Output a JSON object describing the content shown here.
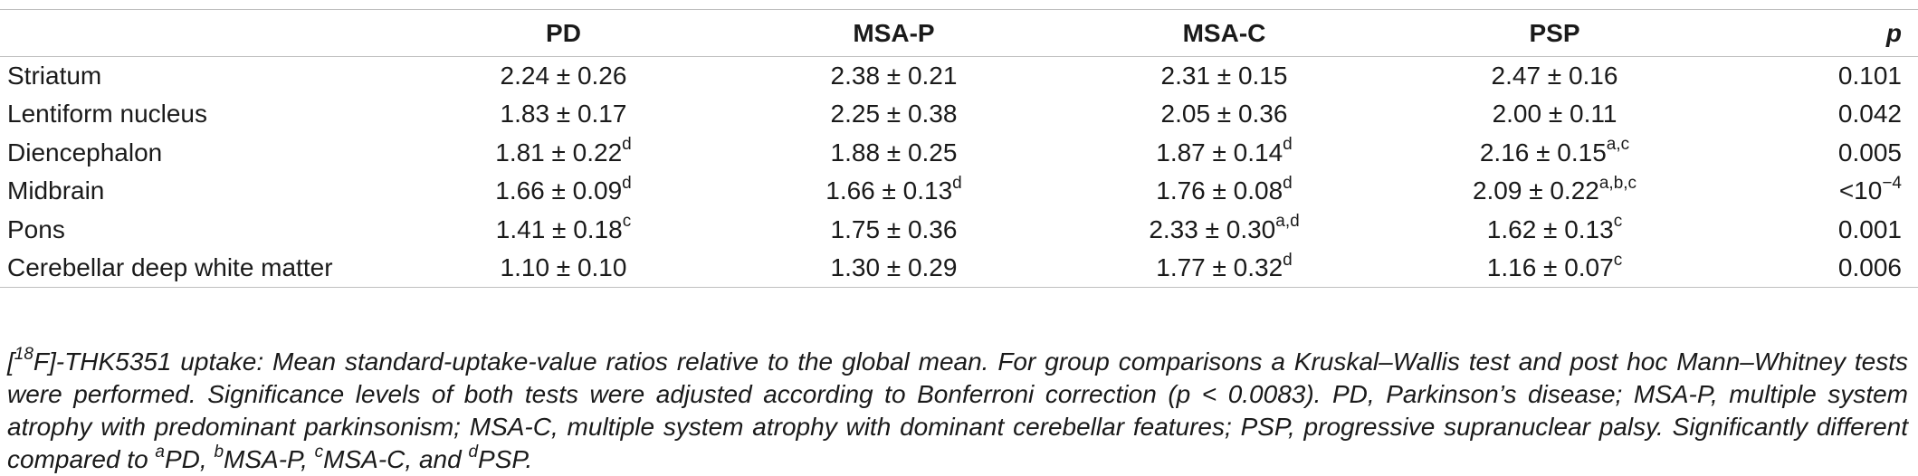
{
  "table": {
    "headers": [
      "",
      "PD",
      "MSA-P",
      "MSA-C",
      "PSP",
      "p"
    ],
    "rows": [
      {
        "label": "Striatum",
        "cells": [
          {
            "value": "2.24 ± 0.26",
            "sup": ""
          },
          {
            "value": "2.38 ± 0.21",
            "sup": ""
          },
          {
            "value": "2.31 ± 0.15",
            "sup": ""
          },
          {
            "value": "2.47 ± 0.16",
            "sup": ""
          }
        ],
        "p": {
          "value": "0.101",
          "sup": ""
        }
      },
      {
        "label": "Lentiform nucleus",
        "cells": [
          {
            "value": "1.83 ± 0.17",
            "sup": ""
          },
          {
            "value": "2.25 ± 0.38",
            "sup": ""
          },
          {
            "value": "2.05 ± 0.36",
            "sup": ""
          },
          {
            "value": "2.00 ± 0.11",
            "sup": ""
          }
        ],
        "p": {
          "value": "0.042",
          "sup": ""
        }
      },
      {
        "label": "Diencephalon",
        "cells": [
          {
            "value": "1.81 ± 0.22",
            "sup": "d"
          },
          {
            "value": "1.88 ± 0.25",
            "sup": ""
          },
          {
            "value": "1.87 ± 0.14",
            "sup": "d"
          },
          {
            "value": "2.16 ± 0.15",
            "sup": "a,c"
          }
        ],
        "p": {
          "value": "0.005",
          "sup": ""
        }
      },
      {
        "label": "Midbrain",
        "cells": [
          {
            "value": "1.66 ± 0.09",
            "sup": "d"
          },
          {
            "value": "1.66 ± 0.13",
            "sup": "d"
          },
          {
            "value": "1.76 ± 0.08",
            "sup": "d"
          },
          {
            "value": "2.09 ± 0.22",
            "sup": "a,b,c"
          }
        ],
        "p": {
          "value": "<10",
          "sup": "−4"
        }
      },
      {
        "label": "Pons",
        "cells": [
          {
            "value": "1.41 ± 0.18",
            "sup": "c"
          },
          {
            "value": "1.75 ± 0.36",
            "sup": ""
          },
          {
            "value": "2.33 ± 0.30",
            "sup": "a,d"
          },
          {
            "value": "1.62 ± 0.13",
            "sup": "c"
          }
        ],
        "p": {
          "value": "0.001",
          "sup": ""
        }
      },
      {
        "label": "Cerebellar deep white matter",
        "cells": [
          {
            "value": "1.10 ± 0.10",
            "sup": ""
          },
          {
            "value": "1.30 ± 0.29",
            "sup": ""
          },
          {
            "value": "1.77 ± 0.32",
            "sup": "d"
          },
          {
            "value": "1.16 ± 0.07",
            "sup": "c"
          }
        ],
        "p": {
          "value": "0.006",
          "sup": ""
        }
      }
    ]
  },
  "caption": {
    "pre_sup": "[",
    "sup_18": "18",
    "text_main": "F]-THK5351 uptake: Mean standard-uptake-value ratios relative to the global mean. For group comparisons a Kruskal–Wallis test and post hoc Mann–Whitney tests were performed. Significance levels of both tests were adjusted according to Bonferroni correction (p < 0.0083). PD, Parkinson’s disease; MSA-P, multiple system atrophy with predominant parkinsonism; MSA-C, multiple system atrophy with dominant cerebellar features; PSP, progressive supranuclear palsy. Significantly different compared to ",
    "sup_a": "a",
    "text_a": "PD, ",
    "sup_b": "b",
    "text_b": "MSA-P, ",
    "sup_c": "c",
    "text_c": "MSA-C, and ",
    "sup_d": "d",
    "text_d": "PSP."
  }
}
